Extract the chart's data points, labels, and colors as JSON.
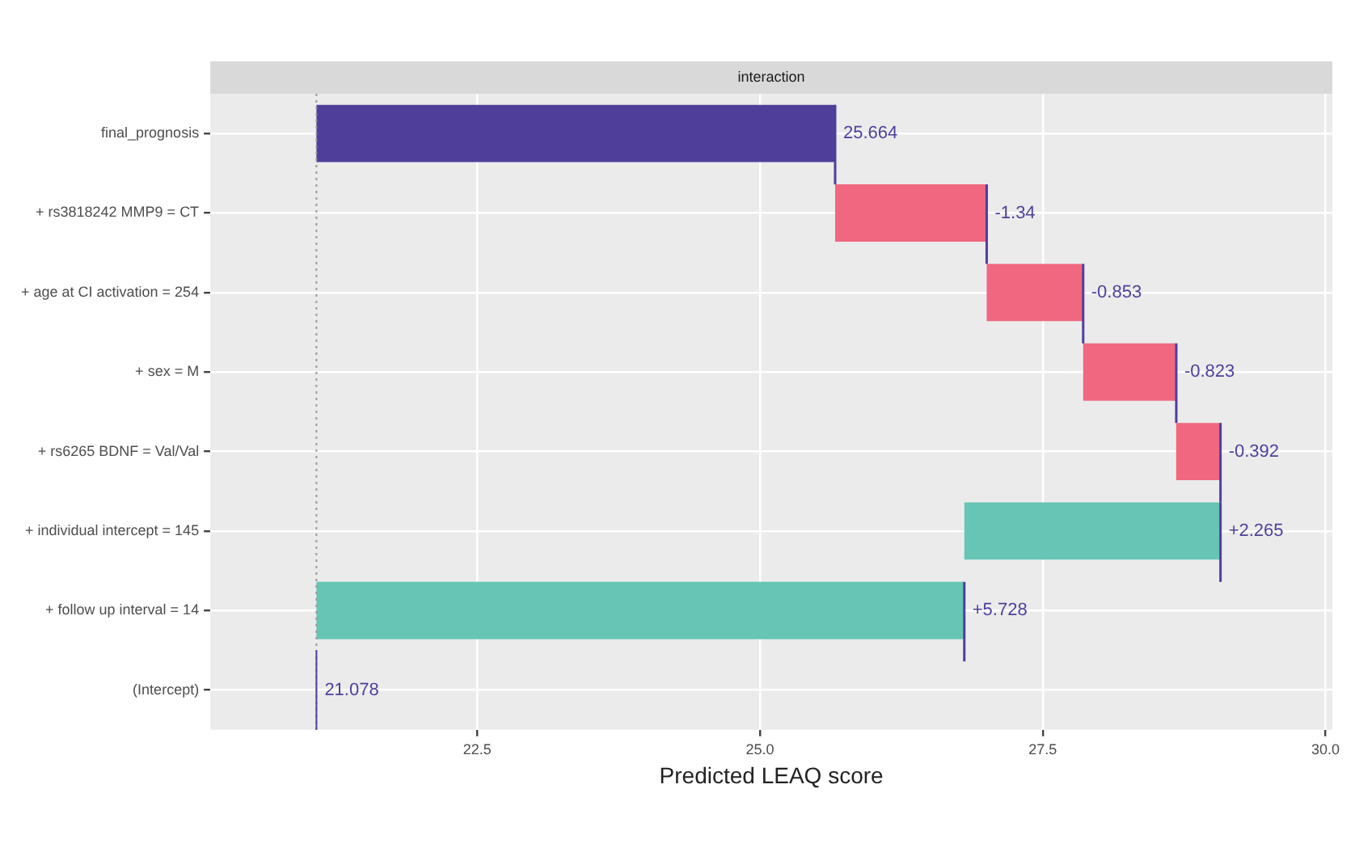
{
  "chart_data": {
    "type": "bar",
    "orientation": "horizontal",
    "title": "interaction",
    "xlabel": "Predicted LEAQ score",
    "categories": [
      "final_prognosis",
      "+ rs3818242 MMP9 = CT",
      "+ age at CI activation = 254",
      "+ sex = M",
      "+ rs6265 BDNF = Val/Val",
      "+ individual intercept = 145",
      "+ follow up interval = 14",
      "(Intercept)"
    ],
    "base": [
      21.078,
      27.004,
      27.857,
      28.68,
      29.071,
      26.806,
      21.078,
      null
    ],
    "values": [
      4.586,
      -1.34,
      -0.853,
      -0.823,
      -0.392,
      2.265,
      5.728,
      null
    ],
    "value_labels": [
      "25.664",
      "-1.34",
      "-0.853",
      "-0.823",
      "-0.392",
      "+2.265",
      "+5.728",
      null
    ],
    "colors": [
      "#4f3f9b",
      "#f0677f",
      "#f0677f",
      "#f0677f",
      "#f0677f",
      "#66c5b5",
      "#66c5b5",
      "#4f3f9b"
    ],
    "ref_lines": [
      {
        "axis": "x",
        "value": 21.078,
        "color": "#999999",
        "line_style": "dotted"
      },
      {
        "axis": "x",
        "value": 21.078,
        "label": "21.078",
        "color": "#4f3f9b",
        "line_style": "solid"
      }
    ],
    "xlim": [
      20.14,
      30.06
    ],
    "xticks": [
      22.5,
      {
        "value": 25,
        "label": "25.0"
      },
      27.5,
      {
        "value": 30,
        "label": "30.0"
      }
    ],
    "grid": true,
    "legend": false
  }
}
